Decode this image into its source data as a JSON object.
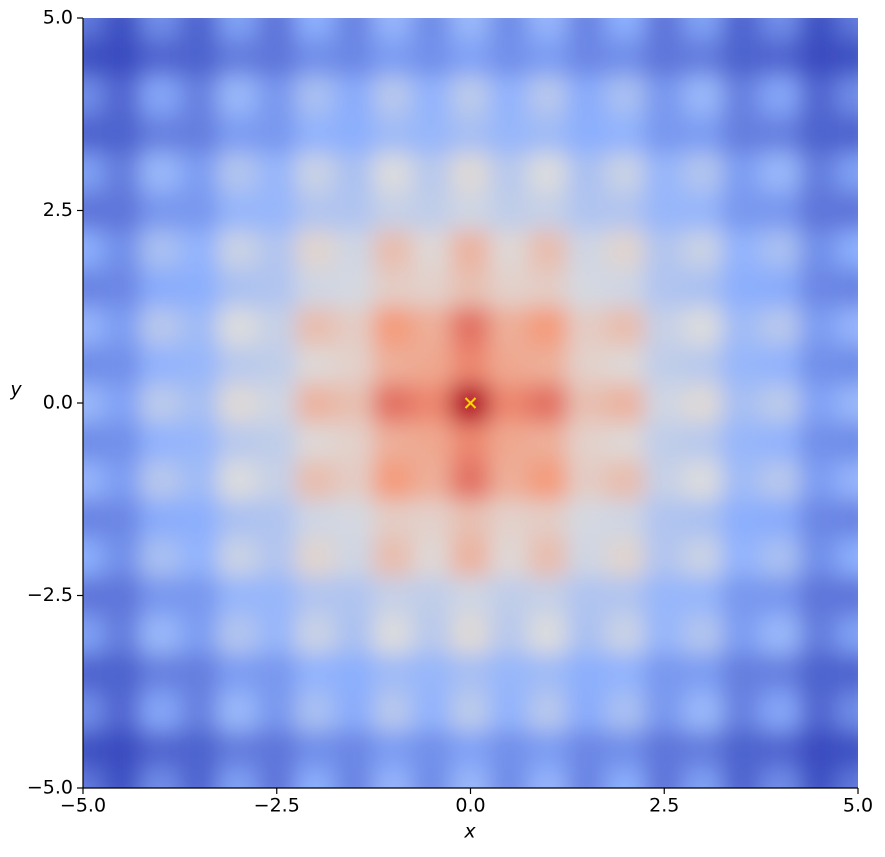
{
  "chart_data": {
    "type": "heatmap",
    "xlabel": "x",
    "ylabel": "y",
    "x": [
      -5,
      -4.5,
      -4,
      -3.5,
      -3,
      -2.5,
      -2,
      -1.5,
      -1,
      -0.5,
      0,
      0.5,
      1,
      1.5,
      2,
      2.5,
      3,
      3.5,
      4,
      4.5,
      5
    ],
    "y": [
      -5,
      -4.5,
      -4,
      -3.5,
      -3,
      -2.5,
      -2,
      -1.5,
      -1,
      -0.5,
      0,
      0.5,
      1,
      1.5,
      2,
      2.5,
      3,
      3.5,
      4,
      4.5,
      5
    ],
    "z": [
      [
        12.6,
        14.0,
        11.9,
        13.3,
        11.2,
        12.7,
        10.7,
        12.2,
        10.3,
        11.9,
        10.1,
        11.9,
        10.3,
        12.2,
        10.7,
        12.7,
        11.2,
        13.3,
        11.9,
        14.0,
        12.6
      ],
      [
        14.0,
        14.2,
        13.2,
        13.4,
        12.4,
        12.7,
        11.8,
        12.1,
        11.3,
        11.8,
        11.1,
        11.8,
        11.3,
        12.1,
        11.8,
        12.7,
        12.4,
        13.4,
        13.2,
        14.2,
        14.0
      ],
      [
        11.9,
        13.2,
        11.0,
        12.3,
        10.1,
        11.5,
        9.4,
        10.8,
        8.8,
        10.4,
        8.6,
        10.4,
        8.8,
        10.8,
        9.4,
        11.5,
        10.1,
        12.3,
        11.0,
        13.2,
        11.9
      ],
      [
        13.3,
        13.4,
        12.3,
        12.4,
        11.3,
        11.5,
        10.4,
        10.7,
        9.8,
        10.2,
        9.5,
        10.2,
        9.8,
        10.7,
        10.4,
        11.5,
        11.3,
        12.4,
        12.3,
        13.4,
        13.3
      ],
      [
        11.2,
        12.4,
        10.1,
        11.3,
        9.0,
        10.2,
        8.0,
        9.3,
        7.2,
        8.7,
        6.9,
        8.7,
        7.2,
        9.3,
        8.0,
        10.2,
        9.0,
        11.3,
        10.1,
        12.4,
        11.2
      ],
      [
        12.7,
        12.7,
        11.5,
        11.5,
        10.2,
        10.2,
        9.0,
        9.1,
        8.1,
        8.4,
        7.7,
        8.4,
        8.1,
        9.1,
        9.0,
        10.2,
        10.2,
        11.5,
        11.5,
        12.7,
        12.7
      ],
      [
        10.7,
        11.8,
        9.4,
        10.4,
        8.0,
        9.0,
        6.6,
        7.7,
        5.4,
        6.8,
        4.9,
        6.8,
        5.4,
        7.7,
        6.6,
        9.0,
        8.0,
        10.4,
        9.4,
        11.8,
        10.7
      ],
      [
        12.2,
        12.1,
        10.8,
        10.7,
        9.3,
        9.1,
        7.7,
        7.5,
        6.2,
        6.4,
        5.5,
        6.4,
        6.2,
        7.5,
        7.7,
        9.1,
        9.3,
        10.7,
        10.8,
        12.1,
        12.2
      ],
      [
        10.3,
        11.3,
        8.8,
        9.8,
        7.2,
        8.1,
        5.4,
        6.2,
        3.6,
        4.6,
        2.6,
        4.6,
        3.6,
        6.2,
        5.4,
        8.1,
        7.2,
        9.8,
        8.8,
        11.3,
        10.3
      ],
      [
        11.9,
        11.8,
        10.4,
        10.2,
        8.7,
        8.4,
        6.8,
        6.4,
        4.6,
        4.3,
        3.1,
        4.3,
        4.6,
        6.4,
        6.8,
        8.4,
        8.7,
        10.2,
        10.4,
        11.8,
        11.9
      ],
      [
        10.1,
        11.1,
        8.6,
        9.5,
        6.9,
        7.7,
        4.9,
        5.5,
        2.6,
        3.1,
        0,
        3.1,
        2.6,
        5.5,
        4.9,
        7.7,
        6.9,
        9.5,
        8.6,
        11.1,
        10.1
      ],
      [
        11.9,
        11.8,
        10.4,
        10.2,
        8.7,
        8.4,
        6.8,
        6.4,
        4.6,
        4.3,
        3.1,
        4.3,
        4.6,
        6.4,
        6.8,
        8.4,
        8.7,
        10.2,
        10.4,
        11.8,
        11.9
      ],
      [
        10.3,
        11.3,
        8.8,
        9.8,
        7.2,
        8.1,
        5.4,
        6.2,
        3.6,
        4.6,
        2.6,
        4.6,
        3.6,
        6.2,
        5.4,
        8.1,
        7.2,
        9.8,
        8.8,
        11.3,
        10.3
      ],
      [
        12.2,
        12.1,
        10.8,
        10.7,
        9.3,
        9.1,
        7.7,
        7.5,
        6.2,
        6.4,
        5.5,
        6.4,
        6.2,
        7.5,
        7.7,
        9.1,
        9.3,
        10.7,
        10.8,
        12.1,
        12.2
      ],
      [
        10.7,
        11.8,
        9.4,
        10.4,
        8.0,
        9.0,
        6.6,
        7.7,
        5.4,
        6.8,
        4.9,
        6.8,
        5.4,
        7.7,
        6.6,
        9.0,
        8.0,
        10.4,
        9.4,
        11.8,
        10.7
      ],
      [
        12.7,
        12.7,
        11.5,
        11.5,
        10.2,
        10.2,
        9.0,
        9.1,
        8.1,
        8.4,
        7.7,
        8.4,
        8.1,
        9.1,
        9.0,
        10.2,
        10.2,
        11.5,
        11.5,
        12.7,
        12.7
      ],
      [
        11.2,
        12.4,
        10.1,
        11.3,
        9.0,
        10.2,
        8.0,
        9.3,
        7.2,
        8.7,
        6.9,
        8.7,
        7.2,
        9.3,
        8.0,
        10.2,
        9.0,
        11.3,
        10.1,
        12.4,
        11.2
      ],
      [
        13.3,
        13.4,
        12.3,
        12.4,
        11.3,
        11.5,
        10.4,
        10.7,
        9.8,
        10.2,
        9.5,
        10.2,
        9.8,
        10.7,
        10.4,
        11.5,
        11.3,
        12.4,
        12.3,
        13.4,
        13.3
      ],
      [
        11.9,
        13.2,
        11.0,
        12.3,
        10.1,
        11.5,
        9.4,
        10.8,
        8.8,
        10.4,
        8.6,
        10.4,
        8.8,
        10.8,
        9.4,
        11.5,
        10.1,
        12.3,
        11.0,
        13.2,
        11.9
      ],
      [
        14.0,
        14.2,
        13.2,
        13.4,
        12.4,
        12.7,
        11.8,
        12.1,
        11.3,
        11.8,
        11.1,
        11.8,
        11.3,
        12.1,
        11.8,
        12.7,
        12.4,
        13.4,
        13.2,
        14.2,
        14.0
      ],
      [
        12.6,
        14.0,
        11.9,
        13.3,
        11.2,
        12.7,
        10.7,
        12.2,
        10.3,
        11.9,
        10.1,
        11.9,
        10.3,
        12.2,
        10.7,
        12.7,
        11.2,
        13.3,
        11.9,
        14.0,
        12.6
      ]
    ],
    "colormap": "coolwarm_r",
    "marker": {
      "x": 0,
      "y": 0,
      "color": "#ffd700"
    },
    "xlim": [
      -5,
      5
    ],
    "ylim": [
      -5,
      5
    ],
    "xticks": [
      {
        "value": -5,
        "label": "−5.0"
      },
      {
        "value": -2.5,
        "label": "−2.5"
      },
      {
        "value": 0,
        "label": "0.0"
      },
      2.5,
      {
        "value": 5,
        "label": "5.0"
      }
    ],
    "yticks": [
      {
        "value": -5,
        "label": "−5.0"
      },
      {
        "value": -2.5,
        "label": "−2.5"
      },
      {
        "value": 0,
        "label": "0.0"
      },
      2.5,
      {
        "value": 5,
        "label": "5.0"
      }
    ]
  }
}
